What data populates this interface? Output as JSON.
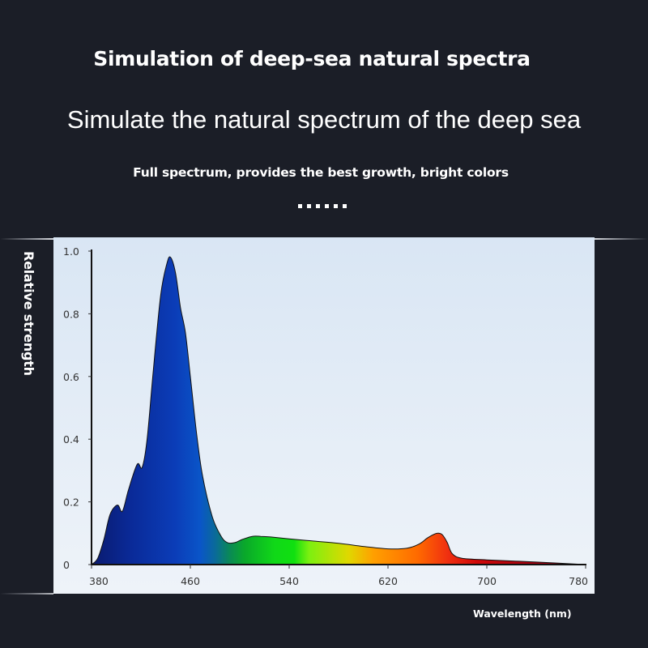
{
  "header": {
    "title": "Simulation of deep-sea natural spectra",
    "subtitle": "Simulate the natural spectrum of the deep sea",
    "tagline": "Full spectrum, provides the best growth, bright colors",
    "ellipsis": "......"
  },
  "axes": {
    "ylabel": "Relative strength",
    "xlabel": "Wavelength (nm)",
    "yticks": [
      "0",
      "0.2",
      "0.4",
      "0.6",
      "0.8",
      "1.0"
    ],
    "xticks": [
      "380",
      "460",
      "540",
      "620",
      "700",
      "780"
    ]
  },
  "colors": {
    "background": "#1b1e27",
    "panel": "#e6eef7",
    "violet_blue": "#0a1f7a",
    "blue": "#0b48c8",
    "green": "#10d010",
    "yellow": "#e8d800",
    "orange": "#ff8c00",
    "red": "#e01010"
  },
  "chart_data": {
    "type": "area",
    "title": "Simulation of deep-sea natural spectra",
    "subtitle": "Simulate the natural spectrum of the deep sea",
    "xlabel": "Wavelength (nm)",
    "ylabel": "Relative strength",
    "xlim": [
      380,
      780
    ],
    "ylim": [
      0,
      1.0
    ],
    "xticks": [
      380,
      460,
      540,
      620,
      700,
      780
    ],
    "yticks": [
      0,
      0.2,
      0.4,
      0.6,
      0.8,
      1.0
    ],
    "grid": false,
    "legend": null,
    "fill": "visible-spectrum gradient under curve",
    "x": [
      380,
      385,
      390,
      395,
      401,
      405,
      410,
      417,
      421,
      425,
      430,
      436,
      441,
      444,
      448,
      452,
      456,
      460,
      465,
      470,
      478,
      485,
      490,
      496,
      502,
      510,
      517,
      525,
      540,
      560,
      580,
      600,
      620,
      635,
      645,
      652,
      658,
      661,
      664,
      668,
      672,
      680,
      700,
      740,
      780
    ],
    "values": [
      0.0,
      0.02,
      0.08,
      0.16,
      0.19,
      0.17,
      0.24,
      0.32,
      0.31,
      0.4,
      0.62,
      0.86,
      0.96,
      0.98,
      0.93,
      0.82,
      0.74,
      0.6,
      0.42,
      0.28,
      0.15,
      0.09,
      0.07,
      0.07,
      0.08,
      0.09,
      0.09,
      0.088,
      0.082,
      0.075,
      0.068,
      0.058,
      0.05,
      0.052,
      0.065,
      0.085,
      0.098,
      0.1,
      0.095,
      0.07,
      0.035,
      0.02,
      0.015,
      0.008,
      0.0
    ]
  }
}
